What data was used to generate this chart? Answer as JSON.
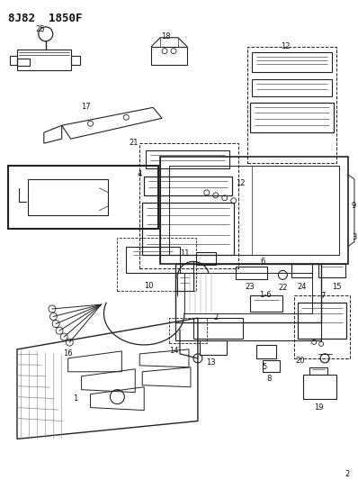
{
  "title": "8J82 1850F",
  "bg_color": "#ffffff",
  "lc": "#222222",
  "tc": "#111111",
  "fig_width": 3.98,
  "fig_height": 5.33,
  "dpi": 100
}
